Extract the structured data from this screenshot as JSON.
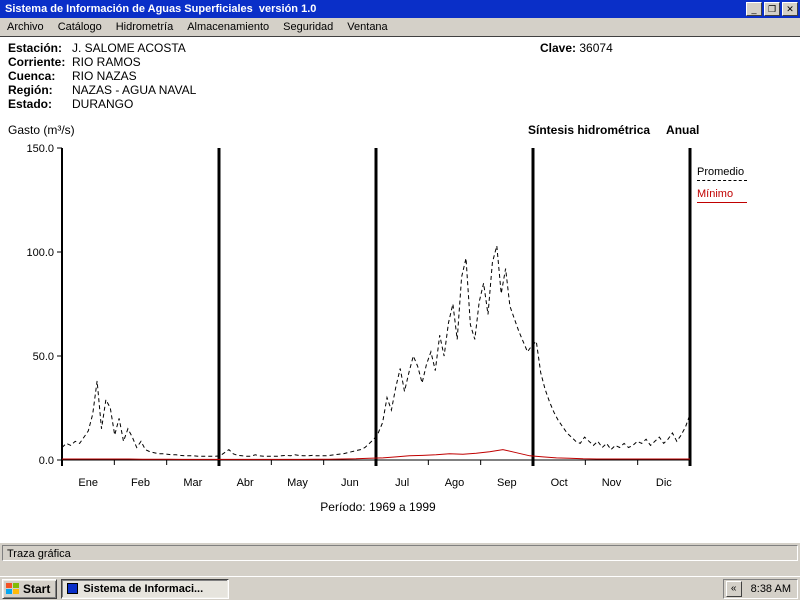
{
  "window": {
    "title": "Sistema de Información de Aguas Superficiales  versión 1.0",
    "buttons": {
      "minimize": "_",
      "maximize": "❐",
      "close": "✕"
    }
  },
  "menu": {
    "items": [
      "Archivo",
      "Catálogo",
      "Hidrometría",
      "Almacenamiento",
      "Seguridad",
      "Ventana"
    ]
  },
  "station": {
    "rows": [
      {
        "label": "Estación:",
        "value": "J. SALOME ACOSTA"
      },
      {
        "label": "Corriente:",
        "value": "RIO RAMOS"
      },
      {
        "label": "Cuenca:",
        "value": "RIO NAZAS"
      },
      {
        "label": "Región:",
        "value": "NAZAS - AGUA NAVAL"
      },
      {
        "label": "Estado:",
        "value": "DURANGO"
      }
    ],
    "clave_label": "Clave:",
    "clave_value": "36074"
  },
  "chart": {
    "y_axis_title": "Gasto (m³/s)",
    "subtitle": "Síntesis hidrométrica",
    "subtitle2": "Anual",
    "period": "Período:  1969 a 1999",
    "legend": [
      {
        "label": "Promedio",
        "color": "#000000",
        "dashed": true
      },
      {
        "label": "Mínimo",
        "color": "#c00000",
        "dashed": false
      }
    ]
  },
  "chart_data": {
    "type": "line",
    "title": "Síntesis hidrométrica Anual",
    "xlabel": "",
    "ylabel": "Gasto (m³/s)",
    "x_categories": [
      "Ene",
      "Feb",
      "Mar",
      "Abr",
      "May",
      "Jun",
      "Jul",
      "Ago",
      "Sep",
      "Oct",
      "Nov",
      "Dic"
    ],
    "y_ticks": [
      0,
      50,
      100,
      150
    ],
    "ylim": [
      0,
      150
    ],
    "quarter_lines": [
      3,
      6,
      9,
      12
    ],
    "grid": false,
    "legend_position": "top-right",
    "period": "1969 a 1999",
    "series": [
      {
        "name": "Promedio",
        "color": "#000000",
        "dashed": true,
        "values": [
          6,
          8,
          7,
          9,
          8,
          11,
          14,
          22,
          38,
          15,
          29,
          25,
          12,
          20,
          9,
          15,
          11,
          6,
          9,
          5,
          4,
          3.5,
          3,
          3,
          2.8,
          2.5,
          2.5,
          2.2,
          2,
          2,
          2,
          1.8,
          1.8,
          1.8,
          1.8,
          1.8,
          2,
          3.5,
          5,
          3,
          2.2,
          2,
          1.8,
          1.8,
          2.5,
          2,
          1.8,
          1.8,
          1.8,
          1.8,
          2,
          2.2,
          2,
          2.5,
          2.2,
          2,
          2,
          2.2,
          2,
          2,
          2,
          2.2,
          2.5,
          2.8,
          3,
          3.5,
          4,
          4.5,
          5,
          6,
          8,
          10,
          13,
          18,
          30,
          24,
          35,
          44,
          33,
          42,
          50,
          45,
          37,
          46,
          52,
          43,
          60,
          50,
          66,
          75,
          58,
          88,
          97,
          65,
          58,
          76,
          85,
          70,
          95,
          103,
          80,
          92,
          74,
          68,
          62,
          57,
          52,
          55,
          57,
          42,
          34,
          28,
          23,
          19,
          16,
          13,
          11,
          9,
          8,
          11,
          9,
          7,
          9,
          6,
          8,
          5,
          7,
          6,
          8,
          6,
          7,
          9,
          8,
          10,
          7,
          9,
          11,
          8,
          10,
          13,
          9,
          12,
          16,
          22
        ]
      },
      {
        "name": "Mínimo",
        "color": "#c00000",
        "dashed": false,
        "values": [
          0.5,
          0.5,
          0.5,
          0.5,
          0.5,
          0.5,
          0.4,
          0.4,
          0.4,
          0.3,
          0.3,
          0.3,
          0.3,
          0.3,
          0.3,
          0.3,
          0.3,
          0.3,
          0.3,
          0.4,
          0.4,
          0.5,
          0.6,
          0.8,
          1,
          1.5,
          2,
          2.2,
          2.5,
          3,
          2.8,
          3.2,
          4,
          5,
          3.5,
          2,
          1.5,
          1,
          0.8,
          0.6,
          0.5,
          0.5,
          0.5,
          0.5,
          0.5,
          0.5,
          0.5,
          0.5
        ]
      }
    ]
  },
  "status_bar": {
    "text": "Traza gráfica"
  },
  "taskbar": {
    "start_label": "Start",
    "task_label": "Sistema de Informaci...",
    "chevron": "«",
    "clock": "8:38 AM"
  },
  "colors": {
    "titlebar": "#0a2fc8",
    "promedio": "#000000",
    "minimo": "#c00000",
    "chrome": "#d4d0c8"
  }
}
